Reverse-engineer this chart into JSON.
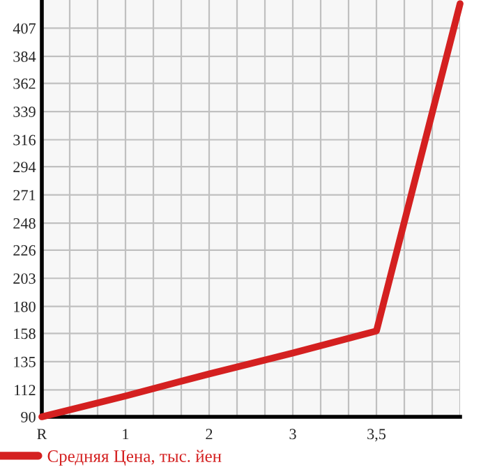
{
  "chart_data": {
    "type": "line",
    "categories": [
      "R",
      "1",
      "2",
      "3",
      "3,5",
      null
    ],
    "series": [
      {
        "name": "Средняя Цена, тыс. йен",
        "color": "#d42020",
        "values": [
          90,
          107,
          125,
          142,
          160,
          427
        ]
      }
    ],
    "ylim": [
      90,
      430
    ],
    "yticks": [
      90,
      112,
      135,
      158,
      180,
      203,
      226,
      248,
      271,
      294,
      316,
      339,
      362,
      384,
      407
    ],
    "grid": true,
    "legend": "bottom",
    "marker": "none",
    "line_style": "solid"
  }
}
